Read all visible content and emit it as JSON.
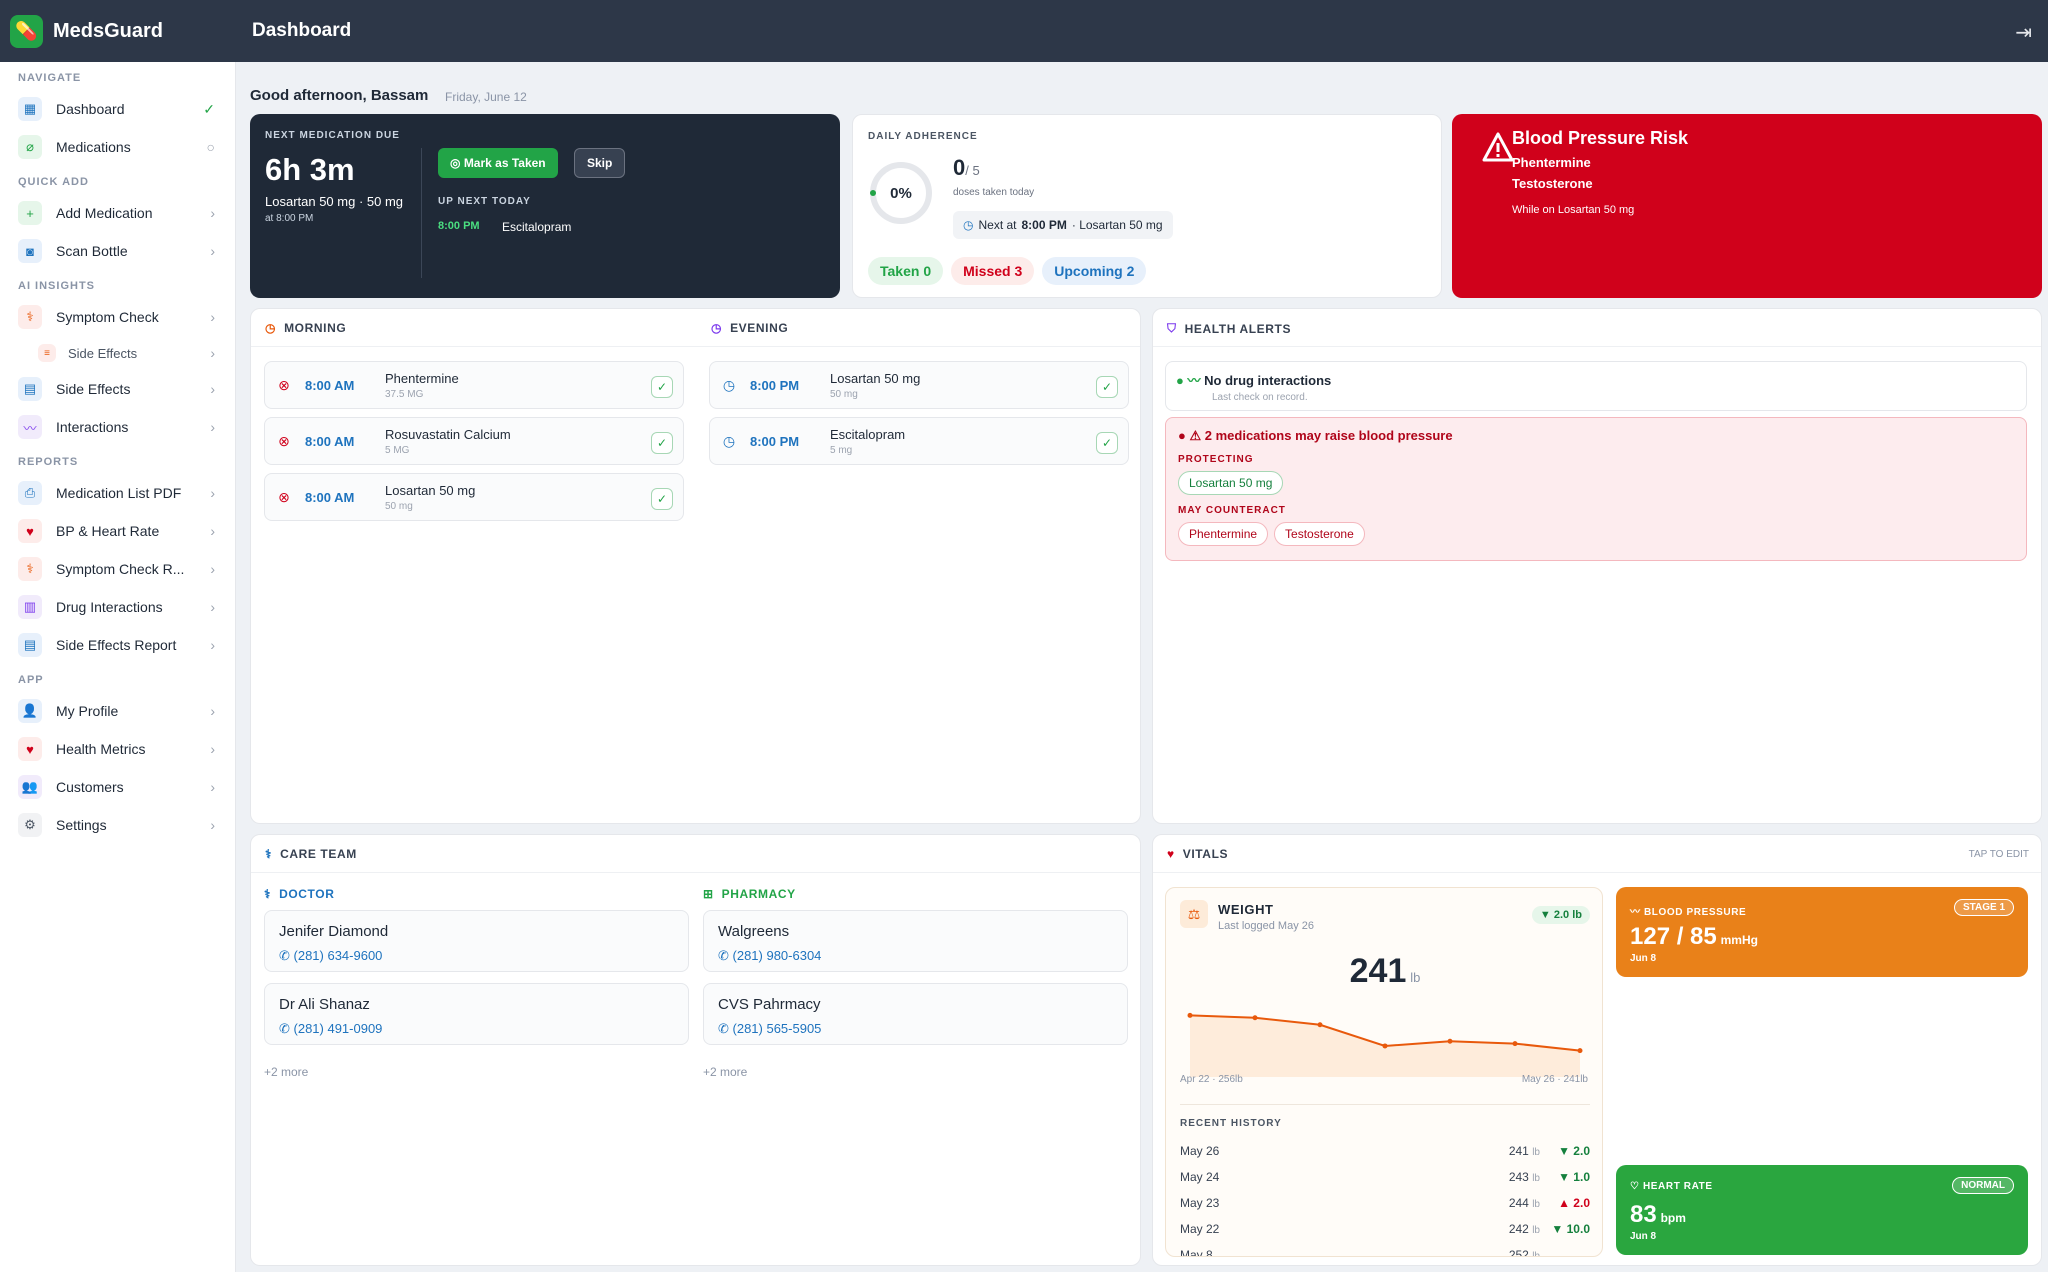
{
  "app": {
    "brand": "MedsGuard",
    "page_title": "Dashboard"
  },
  "sidebar": {
    "sections": {
      "navigate": "NAVIGATE",
      "quick_add": "QUICK ADD",
      "ai_insights": "AI INSIGHTS",
      "reports": "REPORTS",
      "app": "APP"
    },
    "items": {
      "dashboard": "Dashboard",
      "medications": "Medications",
      "add_medication": "Add Medication",
      "scan_bottle": "Scan Bottle",
      "symptom_check": "Symptom Check",
      "side_effects_sub": "Side Effects",
      "side_effects": "Side Effects",
      "interactions": "Interactions",
      "med_list_pdf": "Medication List PDF",
      "bp_heart": "BP & Heart Rate",
      "symptom_report": "Symptom Check R...",
      "drug_interactions": "Drug Interactions",
      "side_effects_report": "Side Effects Report",
      "my_profile": "My Profile",
      "health_metrics": "Health Metrics",
      "customers": "Customers",
      "settings": "Settings"
    }
  },
  "greeting": {
    "text": "Good afternoon, Bassam",
    "date": "Friday, June 12"
  },
  "next_due": {
    "label": "NEXT MEDICATION DUE",
    "countdown": "6h 3m",
    "med": "Losartan 50 mg · 50 mg",
    "time": "at 8:00 PM",
    "mark_taken": "Mark as Taken",
    "skip": "Skip",
    "up_next_label": "UP NEXT TODAY",
    "up_next_time": "8:00 PM",
    "up_next_med": "Escitalopram"
  },
  "adherence": {
    "label": "DAILY ADHERENCE",
    "percent": "0%",
    "percent_value": 0,
    "taken": "0",
    "total": "/ 5",
    "sub": "doses taken today",
    "next_prefix": "Next at ",
    "next_time": "8:00 PM",
    "next_suffix": " · Losartan 50 mg",
    "taken_pill": "Taken 0",
    "missed_pill": "Missed 3",
    "upcoming_pill": "Upcoming 2"
  },
  "bp_risk": {
    "title": "Blood Pressure Risk",
    "med1": "Phentermine",
    "med2": "Testosterone",
    "note": "While on Losartan 50 mg"
  },
  "schedule": {
    "morning_title": "MORNING",
    "evening_title": "EVENING",
    "morning": [
      {
        "time": "8:00 AM",
        "name": "Phentermine",
        "dose": "37.5 MG"
      },
      {
        "time": "8:00 AM",
        "name": "Rosuvastatin Calcium",
        "dose": "5 MG"
      },
      {
        "time": "8:00 AM",
        "name": "Losartan 50 mg",
        "dose": "50 mg"
      }
    ],
    "evening": [
      {
        "time": "8:00 PM",
        "name": "Losartan 50 mg",
        "dose": "50 mg"
      },
      {
        "time": "8:00 PM",
        "name": "Escitalopram",
        "dose": "5 mg"
      }
    ]
  },
  "health_alerts": {
    "title": "HEALTH ALERTS",
    "no_interactions": "No drug interactions",
    "last_check": "Last check on record.",
    "bp_warning": "2 medications may raise blood pressure",
    "protecting_label": "PROTECTING",
    "protecting": [
      "Losartan 50 mg"
    ],
    "counteract_label": "MAY COUNTERACT",
    "counteract": [
      "Phentermine",
      "Testosterone"
    ]
  },
  "care_team": {
    "title": "CARE TEAM",
    "doctor_label": "DOCTOR",
    "pharmacy_label": "PHARMACY",
    "doctors": [
      {
        "name": "Jenifer Diamond",
        "phone": "(281) 634-9600"
      },
      {
        "name": "Dr Ali Shanaz",
        "phone": "(281) 491-0909"
      }
    ],
    "pharmacies": [
      {
        "name": "Walgreens",
        "phone": "(281) 980-6304"
      },
      {
        "name": "CVS Pahrmacy",
        "phone": "(281) 565-5905"
      }
    ],
    "doctors_more": "+2 more",
    "pharmacies_more": "+2 more"
  },
  "vitals": {
    "title": "VITALS",
    "tap_edit": "TAP TO EDIT",
    "weight": {
      "label": "WEIGHT",
      "last_logged": "Last logged May 26",
      "delta": "▼ 2.0 lb",
      "value": "241",
      "unit": "lb",
      "start_label": "Apr 22 · 256lb",
      "end_label": "May 26 · 241lb",
      "recent_label": "RECENT HISTORY",
      "history": [
        {
          "date": "May 26",
          "value": "241",
          "unit": "lb",
          "change": "▼ 2.0",
          "dir": "down"
        },
        {
          "date": "May 24",
          "value": "243",
          "unit": "lb",
          "change": "▼ 1.0",
          "dir": "down"
        },
        {
          "date": "May 23",
          "value": "244",
          "unit": "lb",
          "change": "▲ 2.0",
          "dir": "up"
        },
        {
          "date": "May 22",
          "value": "242",
          "unit": "lb",
          "change": "▼ 10.0",
          "dir": "down"
        },
        {
          "date": "May 8",
          "value": "252",
          "unit": "lb",
          "change": "",
          "dir": ""
        }
      ]
    },
    "bp": {
      "label": "BLOOD PRESSURE",
      "badge": "STAGE 1",
      "value": "127 / 85",
      "unit": "mmHg",
      "date": "Jun 8"
    },
    "hr": {
      "label": "HEART RATE",
      "badge": "NORMAL",
      "value": "83",
      "unit": "bpm",
      "date": "Jun 8"
    }
  },
  "chart_data": {
    "type": "line",
    "x": [
      "Apr 22",
      "",
      "",
      "",
      "",
      "",
      "May 26"
    ],
    "values": [
      256,
      255,
      252,
      243,
      245,
      244,
      241
    ],
    "ylabel": "lb"
  }
}
